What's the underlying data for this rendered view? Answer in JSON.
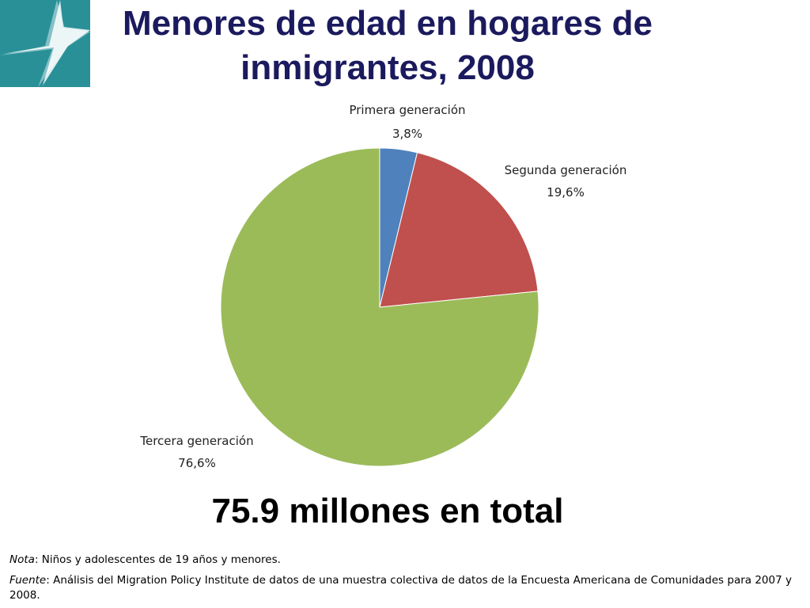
{
  "title": "Menores de edad en hogares de inmigrantes, 2008",
  "total_text": "75.9 millones en total",
  "notes": {
    "nota_label": "Nota",
    "nota_text": ": Niños y adolescentes de 19 años y menores.",
    "fuente_label": "Fuente",
    "fuente_text": ": Análisis del Migration Policy Institute de datos de una muestra colectiva de datos de la Encuesta Americana de Comunidades para 2007 y 2008."
  },
  "logo": {
    "icon": "mpi-star-logo-icon",
    "background": "#2a9098",
    "star_color": "#ffffff"
  },
  "chart_data": {
    "type": "pie",
    "title": "Menores de edad en hogares de inmigrantes, 2008",
    "slices": [
      {
        "name": "Primera generación",
        "value": 3.8,
        "label": "3,8%",
        "color": "#4f81bd"
      },
      {
        "name": "Segunda generación",
        "value": 19.6,
        "label": "19,6%",
        "color": "#c0504d"
      },
      {
        "name": "Tercera generación",
        "value": 76.6,
        "label": "76,6%",
        "color": "#9bbb59"
      }
    ],
    "start": "12 o'clock, clockwise",
    "legend": "none"
  }
}
